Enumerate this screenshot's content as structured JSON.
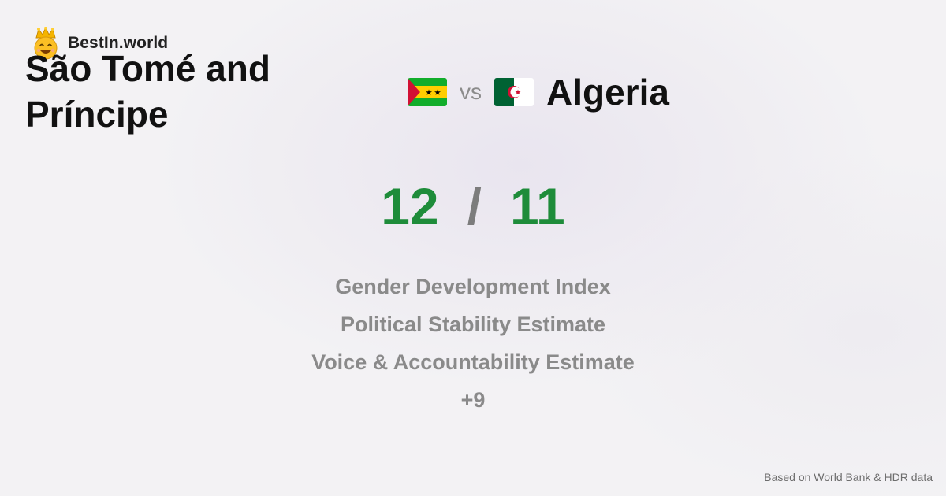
{
  "brand": {
    "name": "BestIn.world",
    "icon": "crowned-smiley-icon"
  },
  "comparison": {
    "country_a": {
      "name": "São Tomé and Príncipe",
      "flag": "flag-sao-tome-and-principe-icon"
    },
    "vs_label": "vs",
    "country_b": {
      "name": "Algeria",
      "flag": "flag-algeria-icon"
    }
  },
  "score": {
    "a": "12",
    "separator": "/",
    "b": "11",
    "color": "#1e8c3a"
  },
  "metrics": [
    "Gender Development Index",
    "Political Stability Estimate",
    "Voice & Accountability Estimate",
    "+9"
  ],
  "footnote": "Based on World Bank & HDR data"
}
